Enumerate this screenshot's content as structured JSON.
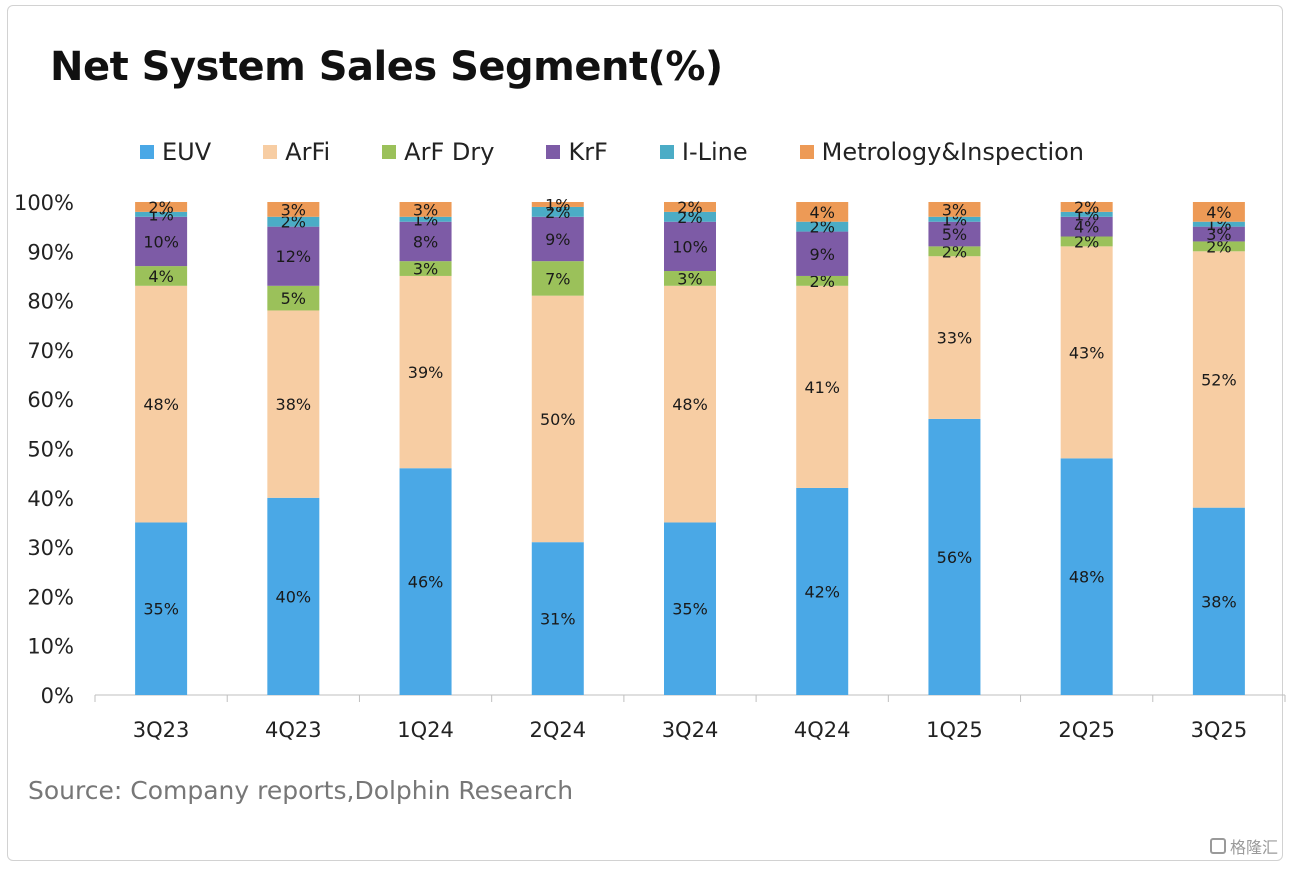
{
  "title": "Net System Sales Segment(%)",
  "source": "Source: Company reports,Dolphin Research",
  "footer_brand": "格隆汇",
  "chart_data": {
    "type": "bar",
    "stacked": true,
    "categories": [
      "3Q23",
      "4Q23",
      "1Q24",
      "2Q24",
      "3Q24",
      "4Q24",
      "1Q25",
      "2Q25",
      "3Q25"
    ],
    "ylim": [
      0,
      100
    ],
    "yticks": [
      "0%",
      "10%",
      "20%",
      "30%",
      "40%",
      "50%",
      "60%",
      "70%",
      "80%",
      "90%",
      "100%"
    ],
    "legend_position": "top",
    "grid": false,
    "series": [
      {
        "name": "EUV",
        "color": "#4aa8e6",
        "values": [
          35,
          40,
          46,
          31,
          35,
          42,
          56,
          48,
          38
        ]
      },
      {
        "name": "ArFi",
        "color": "#f7cda3",
        "values": [
          48,
          38,
          39,
          50,
          48,
          41,
          33,
          43,
          52
        ]
      },
      {
        "name": "ArF Dry",
        "color": "#9bc15a",
        "values": [
          4,
          5,
          3,
          7,
          3,
          2,
          2,
          2,
          2
        ]
      },
      {
        "name": "KrF",
        "color": "#7d5ba6",
        "values": [
          10,
          12,
          8,
          9,
          10,
          9,
          5,
          4,
          3
        ]
      },
      {
        "name": "I-Line",
        "color": "#4bacc6",
        "values": [
          1,
          2,
          1,
          2,
          2,
          2,
          1,
          1,
          1
        ]
      },
      {
        "name": "Metrology&Inspection",
        "color": "#ed9a56",
        "values": [
          2,
          3,
          3,
          1,
          2,
          4,
          3,
          2,
          4
        ]
      }
    ]
  }
}
